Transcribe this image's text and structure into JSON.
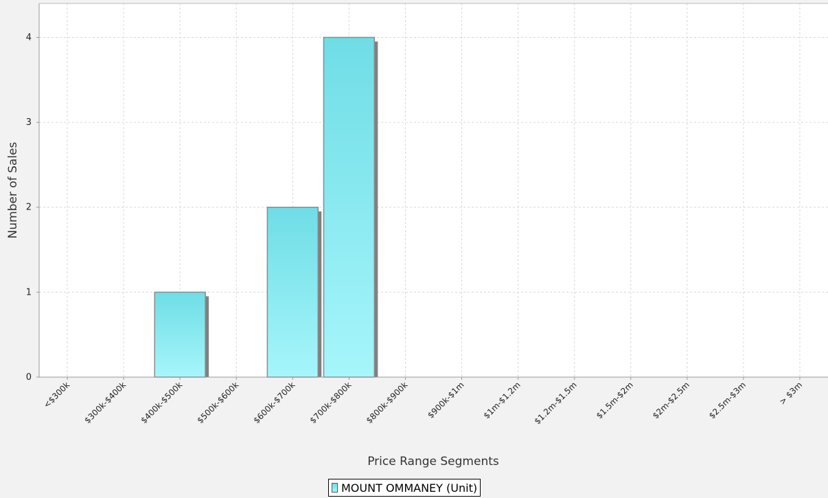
{
  "chart_data": {
    "type": "bar",
    "title": "",
    "xlabel": "Price Range Segments",
    "ylabel": "Number of Sales",
    "categories": [
      "<$300k",
      "$300k-$400k",
      "$400k-$500k",
      "$500k-$600k",
      "$600k-$700k",
      "$700k-$800k",
      "$800k-$900k",
      "$900k-$1m",
      "$1m-$1.2m",
      "$1.2m-$1.5m",
      "$1.5m-$2m",
      "$2m-$2.5m",
      "$2.5m-$3m",
      "> $3m"
    ],
    "series": [
      {
        "name": "MOUNT OMMANEY (Unit)",
        "values": [
          0,
          0,
          1,
          0,
          2,
          4,
          0,
          0,
          0,
          0,
          0,
          0,
          0,
          0
        ]
      }
    ],
    "yticks": [
      0,
      1,
      2,
      3,
      4
    ],
    "ylim": [
      0,
      4.4
    ],
    "grid": true,
    "legend_position": "bottom-center",
    "colors": {
      "bar_top": "#6fdde6",
      "bar_bottom": "#a6f6fb",
      "bar_stroke": "#8a8a8a",
      "shadow": "#808080",
      "grid": "#d8d8d8",
      "plot_bg": "#ffffff",
      "page_bg": "#f2f2f2"
    }
  }
}
